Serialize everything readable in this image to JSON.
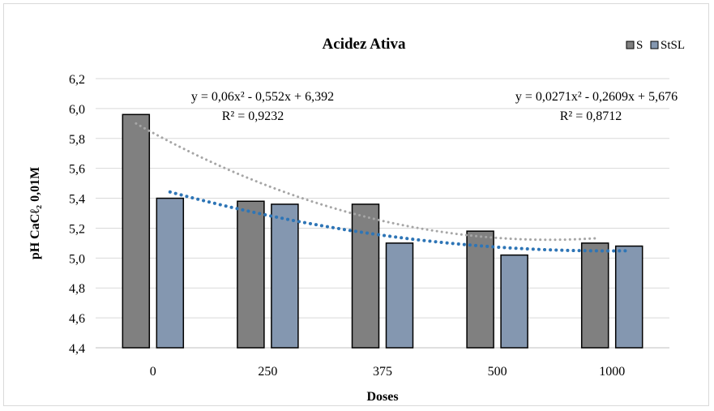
{
  "chart_data": {
    "type": "bar",
    "title": "Acidez Ativa",
    "xlabel": "Doses",
    "ylabel": "pH CaCℓ₂ 0,01M",
    "categories": [
      "0",
      "250",
      "375",
      "500",
      "1000"
    ],
    "ylim": [
      4.4,
      6.2
    ],
    "yticks": [
      "4,4",
      "4,6",
      "4,8",
      "5,0",
      "5,2",
      "5,4",
      "5,6",
      "5,8",
      "6,0",
      "6,2"
    ],
    "grid": true,
    "legend_position": "top-right",
    "series": [
      {
        "name": "S",
        "values": [
          5.96,
          5.38,
          5.36,
          5.18,
          5.1
        ],
        "color": "#808080"
      },
      {
        "name": "StSL",
        "values": [
          5.4,
          5.36,
          5.1,
          5.02,
          5.08
        ],
        "color": "#8497b0"
      }
    ],
    "trendlines": [
      {
        "series": "S",
        "type": "polynomial",
        "coefficients": [
          0.06,
          -0.552,
          6.392
        ],
        "color": "#a6a6a6",
        "equation": "y = 0,06x² - 0,552x + 6,392",
        "r2": "R² = 0,9232"
      },
      {
        "series": "StSL",
        "type": "polynomial",
        "coefficients": [
          0.0271,
          -0.2609,
          5.676
        ],
        "color": "#2e75b6",
        "equation": "y = 0,0271x² - 0,2609x + 5,676",
        "r2": "R² = 0,8712"
      }
    ]
  }
}
